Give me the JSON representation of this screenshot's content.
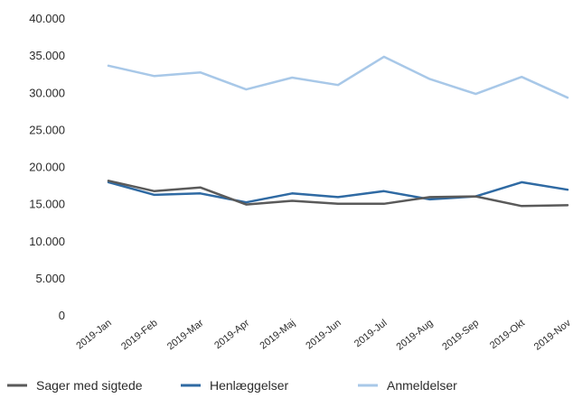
{
  "chart_data": {
    "type": "line",
    "title": "",
    "xlabel": "",
    "ylabel": "",
    "categories": [
      "2019-Jan",
      "2019-Feb",
      "2019-Mar",
      "2019-Apr",
      "2019-Maj",
      "2019-Jun",
      "2019-Jul",
      "2019-Aug",
      "2019-Sep",
      "2019-Okt",
      "2019-Nov"
    ],
    "y_ticks": [
      "0",
      "5.000",
      "10.000",
      "15.000",
      "20.000",
      "25.000",
      "30.000",
      "35.000",
      "40.000"
    ],
    "ylim": [
      0,
      40000
    ],
    "grid": false,
    "legend_position": "bottom",
    "series": [
      {
        "name": "Sager med sigtede",
        "color": "#5a5a5a",
        "values": [
          18200,
          16800,
          17300,
          15000,
          15500,
          15100,
          15100,
          16000,
          16100,
          14800,
          14900
        ]
      },
      {
        "name": "Henlæggelser",
        "color": "#2f6aa3",
        "values": [
          18000,
          16300,
          16500,
          15300,
          16500,
          16000,
          16800,
          15700,
          16100,
          18000,
          17000
        ]
      },
      {
        "name": "Anmeldelser",
        "color": "#a8c8e8",
        "values": [
          33700,
          32300,
          32800,
          30500,
          32100,
          31100,
          34900,
          31900,
          29900,
          32200,
          29400
        ]
      }
    ]
  }
}
